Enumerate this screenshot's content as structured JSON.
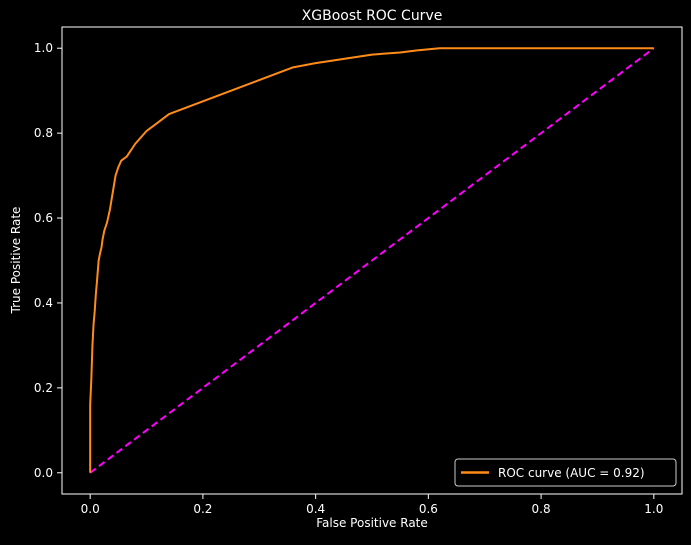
{
  "chart_data": {
    "type": "line",
    "title": "XGBoost ROC Curve",
    "xlabel": "False Positive Rate",
    "ylabel": "True Positive Rate",
    "xlim": [
      -0.05,
      1.05
    ],
    "ylim": [
      -0.05,
      1.05
    ],
    "xticks": [
      0.0,
      0.2,
      0.4,
      0.6,
      0.8,
      1.0
    ],
    "yticks": [
      0.0,
      0.2,
      0.4,
      0.6,
      0.8,
      1.0
    ],
    "xtick_labels": [
      "0.0",
      "0.2",
      "0.4",
      "0.6",
      "0.8",
      "1.0"
    ],
    "ytick_labels": [
      "0.0",
      "0.2",
      "0.4",
      "0.6",
      "0.8",
      "1.0"
    ],
    "grid": false,
    "legend_position": "lower-right",
    "colors": {
      "background": "#000000",
      "roc": "#ff8c19",
      "diagonal": "#ff00ff",
      "text": "#ffffff"
    },
    "series": [
      {
        "name": "ROC curve (AUC = 0.92)",
        "style": "solid",
        "x": [
          0.0,
          0.0,
          0.002,
          0.004,
          0.006,
          0.008,
          0.01,
          0.012,
          0.015,
          0.018,
          0.02,
          0.022,
          0.025,
          0.03,
          0.035,
          0.04,
          0.045,
          0.05,
          0.055,
          0.06,
          0.065,
          0.07,
          0.075,
          0.08,
          0.09,
          0.1,
          0.11,
          0.12,
          0.13,
          0.14,
          0.15,
          0.16,
          0.17,
          0.18,
          0.2,
          0.22,
          0.24,
          0.26,
          0.28,
          0.3,
          0.33,
          0.36,
          0.4,
          0.45,
          0.5,
          0.55,
          0.58,
          0.62,
          0.7,
          0.8,
          0.9,
          1.0
        ],
        "y": [
          0.0,
          0.16,
          0.22,
          0.3,
          0.35,
          0.38,
          0.42,
          0.45,
          0.5,
          0.52,
          0.53,
          0.55,
          0.57,
          0.59,
          0.62,
          0.66,
          0.7,
          0.72,
          0.735,
          0.74,
          0.745,
          0.755,
          0.765,
          0.775,
          0.79,
          0.805,
          0.815,
          0.825,
          0.835,
          0.845,
          0.85,
          0.855,
          0.86,
          0.865,
          0.875,
          0.885,
          0.895,
          0.905,
          0.915,
          0.925,
          0.94,
          0.955,
          0.965,
          0.975,
          0.985,
          0.99,
          0.995,
          1.0,
          1.0,
          1.0,
          1.0,
          1.0
        ]
      },
      {
        "name": "",
        "style": "dashed",
        "x": [
          0.0,
          1.0
        ],
        "y": [
          0.0,
          1.0
        ]
      }
    ]
  }
}
